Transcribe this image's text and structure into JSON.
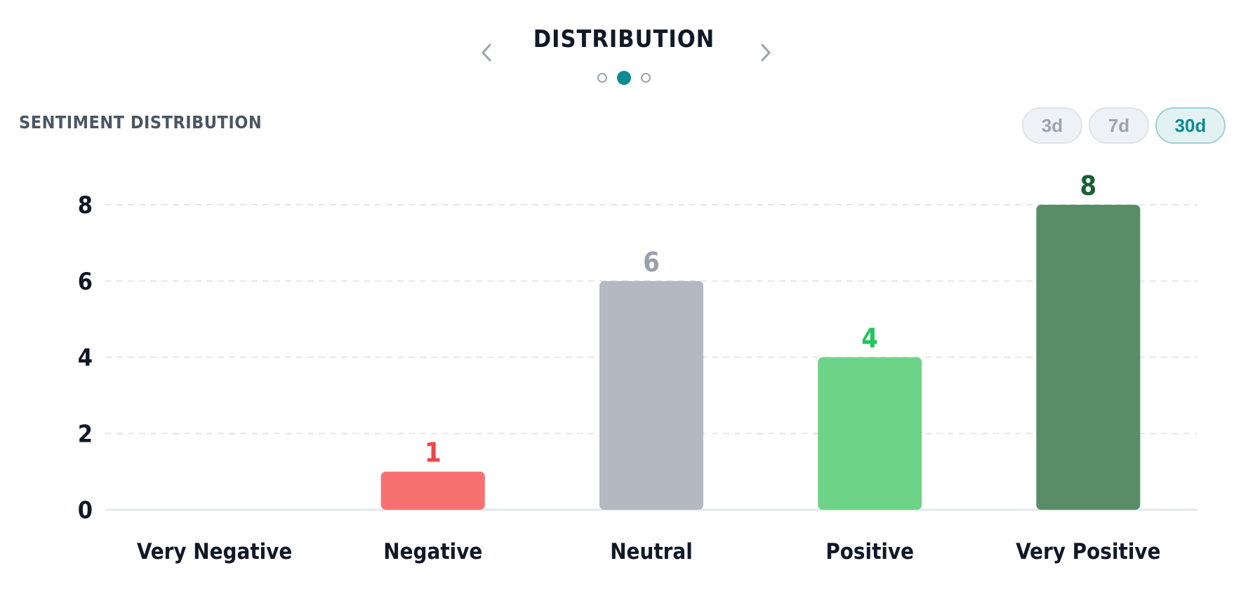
{
  "header": {
    "title": "DISTRIBUTION",
    "prev_icon": "chevron-left-icon",
    "next_icon": "chevron-right-icon",
    "pages": 3,
    "active_page": 2
  },
  "section": {
    "title": "SENTIMENT DISTRIBUTION"
  },
  "range_toggle": {
    "options": [
      "3d",
      "7d",
      "30d"
    ],
    "selected": "30d"
  },
  "colors": {
    "accent": "#0e8a93",
    "grid": "#e5e7eb",
    "axis": "#e5e7eb"
  },
  "chart_data": {
    "type": "bar",
    "categories": [
      "Very Negative",
      "Negative",
      "Neutral",
      "Positive",
      "Very Positive"
    ],
    "values": [
      0,
      1,
      6,
      4,
      8
    ],
    "bar_colors": [
      "#ef4444",
      "#f87171",
      "#b4b8c2",
      "#6dd386",
      "#5a8d67"
    ],
    "label_colors": [
      "#ef4444",
      "#ef4444",
      "#9aa0aa",
      "#22c55e",
      "#1a5e33"
    ],
    "y_ticks": [
      0,
      2,
      4,
      6,
      8
    ],
    "ylim": [
      0,
      8
    ],
    "grid": true,
    "data_labels": true
  }
}
